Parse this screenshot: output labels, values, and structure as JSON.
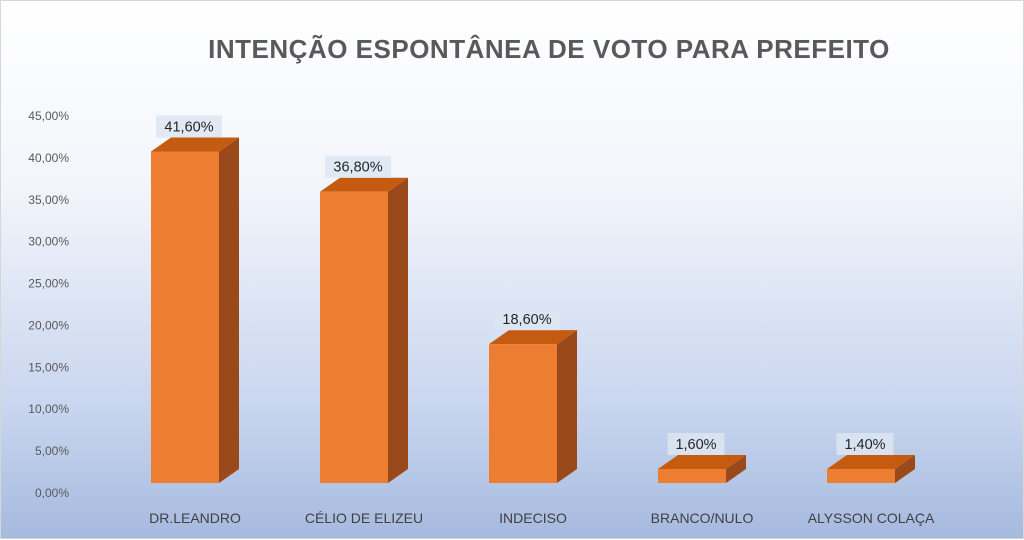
{
  "chart_data": {
    "type": "bar",
    "title": "INTENÇÃO ESPONTÂNEA DE VOTO PARA PREFEITO",
    "categories": [
      "DR.LEANDRO",
      "CÉLIO DE ELIZEU",
      "INDECISO",
      "BRANCO/NULO",
      "ALYSSON COLAÇA"
    ],
    "values": [
      41.6,
      36.8,
      18.6,
      1.6,
      1.4
    ],
    "data_labels": [
      "41,60%",
      "36,80%",
      "18,60%",
      "1,60%",
      "1,40%"
    ],
    "ylim": [
      0,
      45
    ],
    "yticks": [
      0,
      5,
      10,
      15,
      20,
      25,
      30,
      35,
      40,
      45
    ],
    "ytick_labels": [
      "0,00%",
      "5,00%",
      "10,00%",
      "15,00%",
      "20,00%",
      "25,00%",
      "30,00%",
      "35,00%",
      "40,00%",
      "45,00%"
    ],
    "xlabel": "",
    "ylabel": "",
    "grid": false,
    "legend": "none",
    "style": "3d-column",
    "colors": {
      "bar_front": "#ED7D31",
      "bar_top": "#C55A11",
      "bar_side": "#9A4A1A",
      "label_box": "#DCE6F2",
      "background_top": "#FFFFFF",
      "background_bottom": "#A6BADF"
    }
  }
}
